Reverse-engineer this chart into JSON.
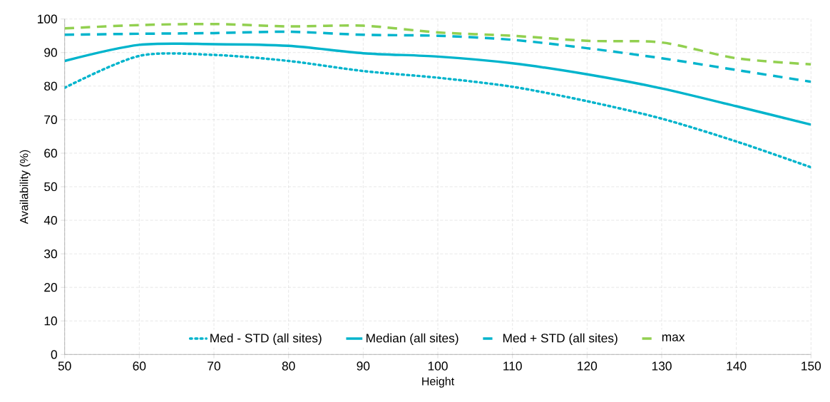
{
  "chart_data": {
    "type": "line",
    "xlabel": "Height",
    "ylabel": "Availability (%)",
    "x": [
      50,
      60,
      70,
      80,
      90,
      100,
      110,
      120,
      130,
      140,
      150
    ],
    "series": [
      {
        "name": "Med - STD (all sites)",
        "color": "#00b4cc",
        "line_style": "dotted",
        "values": [
          79.5,
          89,
          89.3,
          87.5,
          84.5,
          82.5,
          79.8,
          75.5,
          70.3,
          63.5,
          55.8
        ]
      },
      {
        "name": "Median (all sites)",
        "color": "#00b4cc",
        "line_style": "solid",
        "values": [
          87.5,
          92.3,
          92.5,
          92,
          89.8,
          88.8,
          86.8,
          83.5,
          79.3,
          74,
          68.5
        ]
      },
      {
        "name": "Med + STD (all sites)",
        "color": "#00b4cc",
        "line_style": "dashed",
        "values": [
          95.3,
          95.6,
          95.8,
          96.2,
          95.3,
          95,
          93.8,
          91.3,
          88.3,
          84.8,
          81.3
        ]
      },
      {
        "name": "max",
        "color": "#92d050",
        "line_style": "dashed",
        "values": [
          97.2,
          98.2,
          98.5,
          97.8,
          98,
          96,
          95,
          93.5,
          93,
          88.3,
          86.5
        ]
      }
    ],
    "xlim": [
      50,
      150
    ],
    "xticks": [
      50,
      60,
      70,
      80,
      90,
      100,
      110,
      120,
      130,
      140,
      150
    ],
    "ylim": [
      0,
      100
    ],
    "yticks": [
      0,
      10,
      20,
      30,
      40,
      50,
      60,
      70,
      80,
      90,
      100
    ],
    "grid": true,
    "legend": "bottom"
  }
}
